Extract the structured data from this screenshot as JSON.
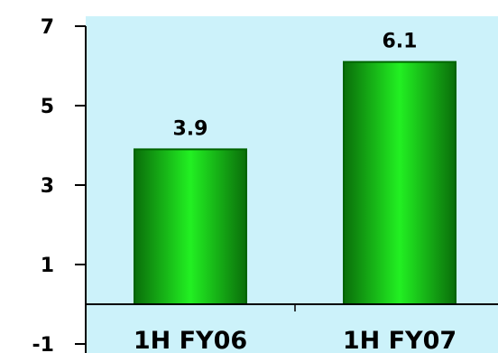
{
  "chart_data": {
    "type": "bar",
    "categories": [
      "1H FY06",
      "1H FY07"
    ],
    "values": [
      3.9,
      6.1
    ],
    "value_labels": [
      "3.9",
      "6.1"
    ],
    "ylim": [
      -1,
      7
    ],
    "yticks": [
      -1,
      1,
      3,
      5,
      7
    ],
    "ytick_labels": [
      "-1",
      "1",
      "3",
      "5",
      "7"
    ],
    "colors": {
      "plot_background": "#CCF2FA",
      "bar_dark": "#006400",
      "bar_light": "#22F022",
      "axis": "#000000"
    },
    "grid": false,
    "legend": "none"
  }
}
